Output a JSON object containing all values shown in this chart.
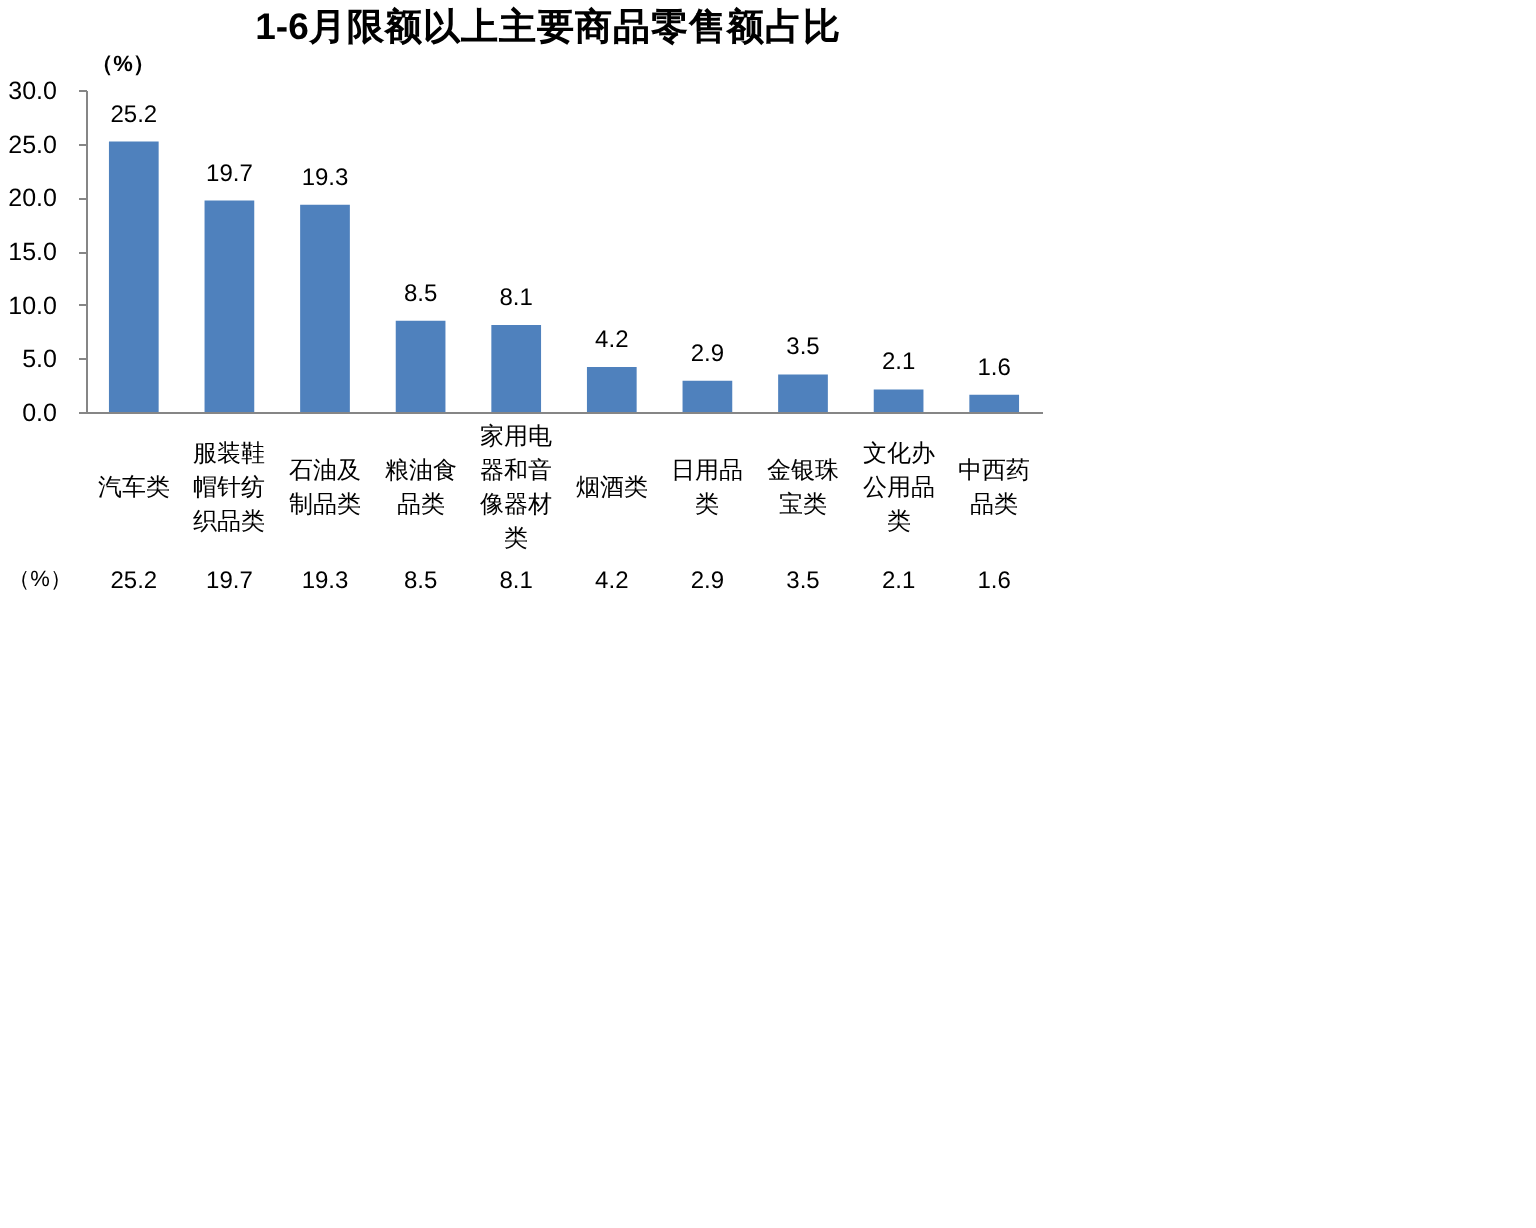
{
  "chart_data": {
    "type": "bar",
    "title": "1-6月限额以上主要商品零售额占比",
    "ylabel": "（%）",
    "categories": [
      "汽车类",
      "服装鞋帽针纺织品类",
      "石油及制品类",
      "粮油食品类",
      "家用电器和音像器材类",
      "烟酒类",
      "日用品类",
      "金银珠宝类",
      "文化办公用品类",
      "中西药品类"
    ],
    "values": [
      25.2,
      19.7,
      19.3,
      8.5,
      8.1,
      4.2,
      2.9,
      3.5,
      2.1,
      1.6
    ],
    "color": "#4f81bd",
    "value_labels": [
      "25.2",
      "19.7",
      "19.3",
      "8.5",
      "8.1",
      "4.2",
      "2.9",
      "3.5",
      "2.1",
      "1.6"
    ],
    "ylim": [
      0,
      30
    ],
    "yticks": [
      {
        "value": 0,
        "label": "0.0"
      },
      {
        "value": 5,
        "label": "5.0"
      },
      {
        "value": 10,
        "label": "10.0"
      },
      {
        "value": 15,
        "label": "15.0"
      },
      {
        "value": 20,
        "label": "20.0"
      },
      {
        "value": 25,
        "label": "25.0"
      },
      {
        "value": 30,
        "label": "30.0"
      }
    ],
    "grid": false,
    "data_labels": true
  }
}
